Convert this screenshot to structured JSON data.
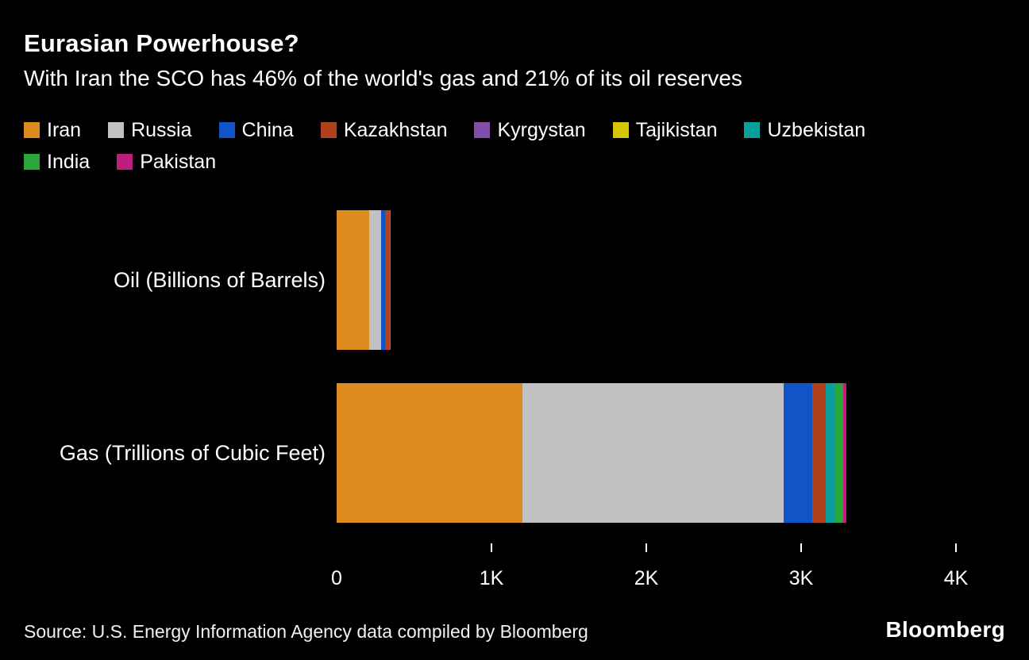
{
  "chart_data": {
    "type": "bar",
    "orientation": "horizontal",
    "stacked": true,
    "title": "Eurasian Powerhouse?",
    "subtitle": "With Iran the SCO has 46% of the world's gas and 21% of its oil reserves",
    "categories": [
      "Oil (Billions of Barrels)",
      "Gas (Trillions of Cubic Feet)"
    ],
    "series": [
      {
        "name": "Iran",
        "color": "#dd8b1e",
        "values": [
          208.6,
          1200
        ]
      },
      {
        "name": "Russia",
        "color": "#c1c1c3",
        "values": [
          80,
          1688
        ]
      },
      {
        "name": "China",
        "color": "#1254c8",
        "values": [
          26,
          184
        ]
      },
      {
        "name": "Kazakhstan",
        "color": "#b0411c",
        "values": [
          30,
          85
        ]
      },
      {
        "name": "Kyrgystan",
        "color": "#7f4fa8",
        "values": [
          0.04,
          0.2
        ]
      },
      {
        "name": "Tajikistan",
        "color": "#d6c500",
        "values": [
          0.01,
          0.2
        ]
      },
      {
        "name": "Uzbekistan",
        "color": "#0a9f9f",
        "values": [
          0.6,
          65
        ]
      },
      {
        "name": "India",
        "color": "#2aa63c",
        "values": [
          4.6,
          49
        ]
      },
      {
        "name": "Pakistan",
        "color": "#bf1e7e",
        "values": [
          0.35,
          21
        ]
      }
    ],
    "xlim": [
      0,
      4318
    ],
    "xticks": [
      {
        "value": 0,
        "label": "0",
        "tick": false
      },
      {
        "value": 1000,
        "label": "1K",
        "tick": true
      },
      {
        "value": 2000,
        "label": "2K",
        "tick": true
      },
      {
        "value": 3000,
        "label": "3K",
        "tick": true
      },
      {
        "value": 4000,
        "label": "4K",
        "tick": true
      }
    ],
    "grid": false,
    "legend_position": "top"
  },
  "footer": {
    "source": "Source: U.S. Energy Information Agency data compiled by Bloomberg",
    "logo": "Bloomberg"
  }
}
